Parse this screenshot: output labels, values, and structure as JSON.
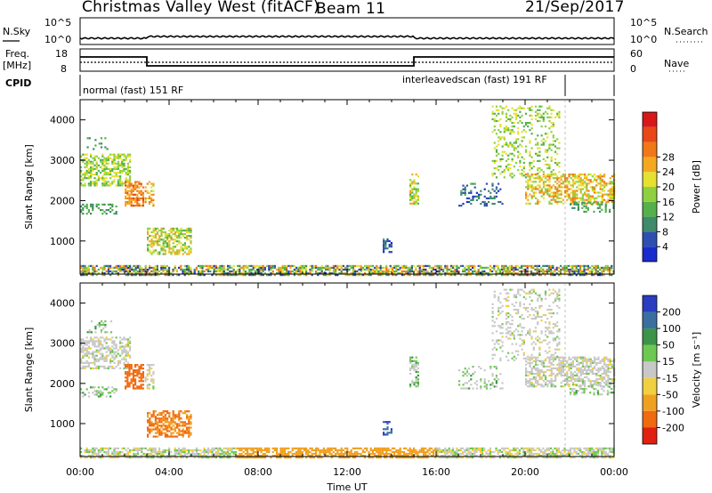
{
  "header": {
    "station": "Christmas Valley West (fitACF)",
    "beam": "Beam 11",
    "date": "21/Sep/2017"
  },
  "panels": {
    "nsky_label": "N.Sky",
    "nsky_ticks": [
      "10^5",
      "10^0"
    ],
    "nsearch_label": "N.Search",
    "nsearch_ticks": [
      "10^5",
      "10^0"
    ],
    "freq_label": "Freq.",
    "freq_unit": "[MHz]",
    "freq_ticks": [
      "18",
      "8"
    ],
    "nave_label": "Nave",
    "nave_ticks": [
      "60",
      "0"
    ],
    "cpid_label": "CPID",
    "cpid_modes": [
      {
        "text": "normal (fast) 151 RF"
      },
      {
        "text": "interleavedscan (fast) 191 RF"
      }
    ]
  },
  "chart_data": [
    {
      "type": "heatmap",
      "ylabel": "Slant Range [km]",
      "ylim": [
        180,
        4500
      ],
      "yticks": [
        "1000",
        "2000",
        "3000",
        "4000"
      ],
      "xticks": [
        "00:00",
        "04:00",
        "08:00",
        "12:00",
        "16:00",
        "20:00",
        "00:00"
      ],
      "colorbar_label": "Power [dB]",
      "colorbar_ticks": [
        "4",
        "8",
        "12",
        "16",
        "20",
        "24",
        "28"
      ],
      "colorbar_colors": [
        "#1a2ccc",
        "#2f4fb0",
        "#3e8a6a",
        "#54b04a",
        "#8fd040",
        "#e6e030",
        "#f4a820",
        "#f07818",
        "#e84818",
        "#d81818"
      ]
    },
    {
      "type": "heatmap",
      "ylabel": "Slant Range [km]",
      "ylim": [
        180,
        4500
      ],
      "yticks": [
        "1000",
        "2000",
        "3000",
        "4000"
      ],
      "xticks": [
        "00:00",
        "04:00",
        "08:00",
        "12:00",
        "16:00",
        "20:00",
        "00:00"
      ],
      "colorbar_label": "Velocity [m s⁻¹]",
      "colorbar_ticks": [
        "200",
        "100",
        "50",
        "15",
        "-15",
        "-50",
        "-100",
        "-200"
      ],
      "colorbar_colors": [
        "#2a3cc0",
        "#3a70a0",
        "#3c9448",
        "#6cc850",
        "#c8c8c8",
        "#f0d040",
        "#f0a020",
        "#f06a10",
        "#e02010"
      ]
    }
  ],
  "xlabel": "Time UT"
}
